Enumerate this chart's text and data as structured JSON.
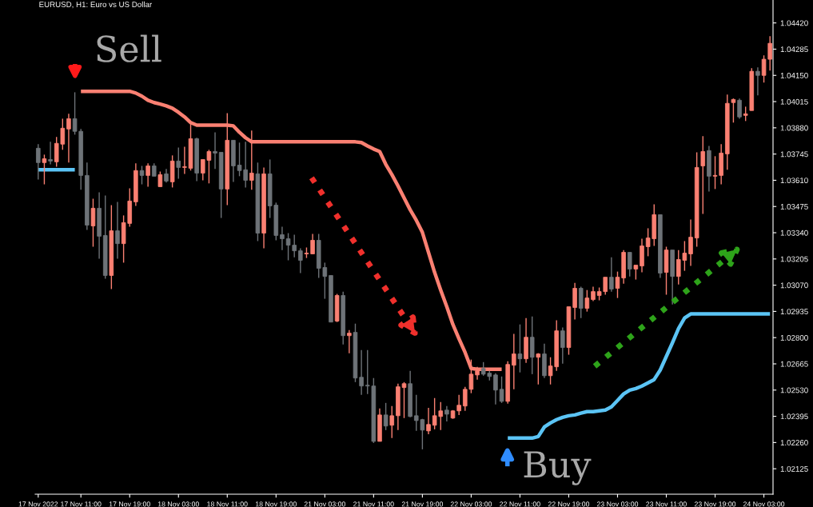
{
  "chart_data": {
    "type": "candlestick",
    "title": "EURUSD, H1: Euro vs US Dollar",
    "categories": [
      "17 Nov 2022",
      null,
      null,
      null,
      null,
      null,
      null,
      "17 Nov 11:00",
      null,
      null,
      null,
      null,
      null,
      null,
      null,
      "17 Nov 19:00",
      null,
      null,
      null,
      null,
      null,
      null,
      null,
      "18 Nov 03:00",
      null,
      null,
      null,
      null,
      null,
      null,
      null,
      "18 Nov 11:00",
      null,
      null,
      null,
      null,
      null,
      null,
      null,
      "18 Nov 19:00",
      null,
      null,
      null,
      null,
      null,
      null,
      null,
      "21 Nov 03:00",
      null,
      null,
      null,
      null,
      null,
      null,
      null,
      "21 Nov 11:00",
      null,
      null,
      null,
      null,
      null,
      null,
      null,
      "21 Nov 19:00",
      null,
      null,
      null,
      null,
      null,
      null,
      null,
      "22 Nov 03:00",
      null,
      null,
      null,
      null,
      null,
      null,
      null,
      "22 Nov 11:00",
      null,
      null,
      null,
      null,
      null,
      null,
      null,
      "22 Nov 19:00",
      null,
      null,
      null,
      null,
      null,
      null,
      null,
      "23 Nov 03:00",
      null,
      null,
      null,
      null,
      null,
      null,
      null,
      "23 Nov 11:00",
      null,
      null,
      null,
      null,
      null,
      null,
      null,
      "23 Nov 19:00",
      null,
      null,
      null,
      null,
      null,
      null,
      null,
      "24 Nov 03:00",
      null
    ],
    "ohlc": [
      [
        1.03775,
        1.03796,
        1.03614,
        1.03701
      ],
      [
        1.03701,
        1.03742,
        1.03589,
        1.03721
      ],
      [
        1.03717,
        1.03808,
        1.03692,
        1.03709
      ],
      [
        1.03705,
        1.03833,
        1.0368,
        1.038
      ],
      [
        1.03796,
        1.03927,
        1.03767,
        1.03878
      ],
      [
        1.03874,
        1.03952,
        1.03701,
        1.03927
      ],
      [
        1.03927,
        1.04063,
        1.03845,
        1.03862
      ],
      [
        1.03862,
        1.03874,
        1.03561,
        1.03635
      ],
      [
        1.03635,
        1.03701,
        1.03355,
        1.03379
      ],
      [
        1.03375,
        1.03515,
        1.03268,
        1.03466
      ],
      [
        1.03466,
        1.03548,
        1.03206,
        1.03322
      ],
      [
        1.03326,
        1.03532,
        1.03103,
        1.0312
      ],
      [
        1.0312,
        1.03482,
        1.0305,
        1.0335
      ],
      [
        1.0335,
        1.03499,
        1.03206,
        1.03284
      ],
      [
        1.03284,
        1.03429,
        1.03186,
        1.03392
      ],
      [
        1.03388,
        1.03569,
        1.03371,
        1.03503
      ],
      [
        1.03499,
        1.03697,
        1.03478,
        1.0366
      ],
      [
        1.0366,
        1.03684,
        1.03589,
        1.03635
      ],
      [
        1.03635,
        1.03697,
        1.03577,
        1.03684
      ],
      [
        1.03684,
        1.03697,
        1.03631,
        1.03631
      ],
      [
        1.03577,
        1.03655,
        1.03577,
        1.03639
      ],
      [
        1.03643,
        1.03668,
        1.03598,
        1.03606
      ],
      [
        1.03602,
        1.03738,
        1.03573,
        1.03709
      ],
      [
        1.03709,
        1.03779,
        1.03618,
        1.03676
      ],
      [
        1.03676,
        1.03783,
        1.03643,
        1.0368
      ],
      [
        1.03672,
        1.03907,
        1.0366,
        1.03824
      ],
      [
        1.03824,
        1.03829,
        1.03606,
        1.03647
      ],
      [
        1.03647,
        1.03717,
        1.0361,
        1.03717
      ],
      [
        1.03713,
        1.03767,
        1.03594,
        1.03758
      ],
      [
        1.03758,
        1.03857,
        1.03668,
        1.0375
      ],
      [
        1.03754,
        1.03754,
        1.03416,
        1.03565
      ],
      [
        1.03565,
        1.03956,
        1.03482,
        1.03816
      ],
      [
        1.03816,
        1.03816,
        1.03602,
        1.03684
      ],
      [
        1.03688,
        1.03804,
        1.03631,
        1.0366
      ],
      [
        1.03664,
        1.03808,
        1.03573,
        1.0361
      ],
      [
        1.0361,
        1.03866,
        1.03561,
        1.03647
      ],
      [
        1.03643,
        1.03701,
        1.03297,
        1.03338
      ],
      [
        1.03338,
        1.03676,
        1.0326,
        1.03643
      ],
      [
        1.03643,
        1.03717,
        1.03416,
        1.03478
      ],
      [
        1.03482,
        1.03495,
        1.03301,
        1.03326
      ],
      [
        1.0333,
        1.03371,
        1.03251,
        1.03309
      ],
      [
        1.03309,
        1.03338,
        1.03198,
        1.03276
      ],
      [
        1.03276,
        1.0333,
        1.03214,
        1.03247
      ],
      [
        1.03247,
        1.0326,
        1.03132,
        1.03198
      ],
      [
        1.03231,
        1.03264,
        1.0321,
        1.03235
      ],
      [
        1.03231,
        1.03334,
        1.03231,
        1.03301
      ],
      [
        1.03301,
        1.03334,
        1.03107,
        1.03157
      ],
      [
        1.03161,
        1.03186,
        1.03,
        1.03115
      ],
      [
        1.0312,
        1.0312,
        1.0288,
        1.0288
      ],
      [
        1.02885,
        1.03025,
        1.0288,
        1.03017
      ],
      [
        1.03017,
        1.03037,
        1.02765,
        1.0281
      ],
      [
        1.0281,
        1.02839,
        1.0272,
        1.02823
      ],
      [
        1.02827,
        1.02872,
        1.02571,
        1.02592
      ],
      [
        1.02596,
        1.02736,
        1.02505,
        1.02551
      ],
      [
        1.02555,
        1.02736,
        1.0251,
        1.02551
      ],
      [
        1.02551,
        1.02592,
        1.02258,
        1.02266
      ],
      [
        1.02266,
        1.02435,
        1.02266,
        1.02402
      ],
      [
        1.02402,
        1.02464,
        1.02324,
        1.02345
      ],
      [
        1.02349,
        1.02448,
        1.02283,
        1.02398
      ],
      [
        1.02398,
        1.02563,
        1.02324,
        1.02547
      ],
      [
        1.02543,
        1.02571,
        1.02386,
        1.02563
      ],
      [
        1.02563,
        1.02629,
        1.0239,
        1.02394
      ],
      [
        1.02398,
        1.02505,
        1.0232,
        1.02373
      ],
      [
        1.02378,
        1.02382,
        1.02225,
        1.02324
      ],
      [
        1.0232,
        1.02439,
        1.02303,
        1.02353
      ],
      [
        1.02349,
        1.02489,
        1.02328,
        1.02398
      ],
      [
        1.02394,
        1.02468,
        1.02324,
        1.02423
      ],
      [
        1.02427,
        1.02448,
        1.02369,
        1.02406
      ],
      [
        1.02386,
        1.02427,
        1.02382,
        1.02423
      ],
      [
        1.02423,
        1.02505,
        1.02402,
        1.02452
      ],
      [
        1.02448,
        1.02547,
        1.02423,
        1.02534
      ],
      [
        1.02534,
        1.02687,
        1.02514,
        1.02612
      ],
      [
        1.02608,
        1.0265,
        1.02584,
        1.02629
      ],
      [
        1.02641,
        1.02674,
        1.02604,
        1.02612
      ],
      [
        1.02617,
        1.02629,
        1.0258,
        1.026
      ],
      [
        1.02608,
        1.02617,
        1.02456,
        1.0253
      ],
      [
        1.02534,
        1.026,
        1.02464,
        1.02472
      ],
      [
        1.02472,
        1.02678,
        1.0246,
        1.02662
      ],
      [
        1.02658,
        1.02819,
        1.02534,
        1.02716
      ],
      [
        1.02716,
        1.02868,
        1.02621,
        1.02691
      ],
      [
        1.02691,
        1.02901,
        1.0267,
        1.02802
      ],
      [
        1.02802,
        1.02909,
        1.02612,
        1.02699
      ],
      [
        1.02699,
        1.0272,
        1.02559,
        1.02716
      ],
      [
        1.02716,
        1.02769,
        1.02592,
        1.02604
      ],
      [
        1.02604,
        1.02699,
        1.02559,
        1.02654
      ],
      [
        1.0265,
        1.02889,
        1.02629,
        1.02835
      ],
      [
        1.02835,
        1.02852,
        1.02666,
        1.02749
      ],
      [
        1.02749,
        1.02959,
        1.02712,
        1.02959
      ],
      [
        1.02955,
        1.03082,
        1.02893,
        1.03054
      ],
      [
        1.03054,
        1.03062,
        1.02901,
        1.02951
      ],
      [
        1.02951,
        1.03045,
        1.02934,
        1.03004
      ],
      [
        1.02996,
        1.03062,
        1.02988,
        1.03037
      ],
      [
        1.03017,
        1.03058,
        1.02992,
        1.03037
      ],
      [
        1.03037,
        1.03111,
        1.03021,
        1.03111
      ],
      [
        1.03111,
        1.03214,
        1.03037,
        1.0305
      ],
      [
        1.03054,
        1.0314,
        1.03004,
        1.03111
      ],
      [
        1.03107,
        1.03251,
        1.03078,
        1.03239
      ],
      [
        1.03239,
        1.03239,
        1.03115,
        1.03153
      ],
      [
        1.03153,
        1.03173,
        1.03099,
        1.03173
      ],
      [
        1.03169,
        1.03309,
        1.03136,
        1.03272
      ],
      [
        1.03268,
        1.03363,
        1.03219,
        1.03313
      ],
      [
        1.03309,
        1.03486,
        1.03272,
        1.03433
      ],
      [
        1.03433,
        1.03433,
        1.03107,
        1.03132
      ],
      [
        1.03136,
        1.03268,
        1.03021,
        1.03251
      ],
      [
        1.03251,
        1.03251,
        1.02971,
        1.03115
      ],
      [
        1.03115,
        1.03251,
        1.03074,
        1.03202
      ],
      [
        1.03198,
        1.03297,
        1.03144,
        1.03235
      ],
      [
        1.03231,
        1.03408,
        1.03169,
        1.03317
      ],
      [
        1.03313,
        1.03754,
        1.03268,
        1.03676
      ],
      [
        1.03684,
        1.03837,
        1.03437,
        1.03758
      ],
      [
        1.03763,
        1.03787,
        1.03552,
        1.03631
      ],
      [
        1.03631,
        1.03734,
        1.03565,
        1.03635
      ],
      [
        1.03635,
        1.03796,
        1.03589,
        1.0375
      ],
      [
        1.03746,
        1.04051,
        1.03664,
        1.04006
      ],
      [
        1.0401,
        1.04031,
        1.03907,
        1.04026
      ],
      [
        1.04022,
        1.04031,
        1.03927,
        1.03936
      ],
      [
        1.03944,
        1.03989,
        1.03915,
        1.03952
      ],
      [
        1.03969,
        1.04187,
        1.03969,
        1.04171
      ],
      [
        1.04171,
        1.04191,
        1.04047,
        1.0415
      ],
      [
        1.0415,
        1.04253,
        1.04113,
        1.04233
      ],
      [
        1.04233,
        1.04352,
        1.04175,
        1.04315
      ]
    ],
    "colors": [
      "#6e7378",
      "#fa8072",
      "#6e7378",
      "#fa8072",
      "#fa8072",
      "#fa8072",
      "#6e7378",
      "#6e7378",
      "#6e7378",
      "#fa8072",
      "#6e7378",
      "#6e7378",
      "#fa8072",
      "#6e7378",
      "#fa8072",
      "#fa8072",
      "#fa8072",
      "#6e7378",
      "#fa8072",
      "#6e7378",
      "#fa8072",
      "#6e7378",
      "#fa8072",
      "#6e7378",
      "#fa8072",
      "#fa8072",
      "#6e7378",
      "#fa8072",
      "#fa8072",
      "#6e7378",
      "#6e7378",
      "#fa8072",
      "#6e7378",
      "#6e7378",
      "#6e7378",
      "#fa8072",
      "#6e7378",
      "#fa8072",
      "#6e7378",
      "#6e7378",
      "#6e7378",
      "#6e7378",
      "#6e7378",
      "#6e7378",
      "#fa8072",
      "#fa8072",
      "#6e7378",
      "#6e7378",
      "#6e7378",
      "#fa8072",
      "#6e7378",
      "#fa8072",
      "#6e7378",
      "#6e7378",
      "#6e7378",
      "#6e7378",
      "#fa8072",
      "#6e7378",
      "#fa8072",
      "#fa8072",
      "#fa8072",
      "#6e7378",
      "#6e7378",
      "#6e7378",
      "#fa8072",
      "#fa8072",
      "#fa8072",
      "#6e7378",
      "#fa8072",
      "#fa8072",
      "#fa8072",
      "#fa8072",
      "#fa8072",
      "#6e7378",
      "#6e7378",
      "#6e7378",
      "#6e7378",
      "#fa8072",
      "#fa8072",
      "#6e7378",
      "#fa8072",
      "#6e7378",
      "#fa8072",
      "#6e7378",
      "#fa8072",
      "#fa8072",
      "#6e7378",
      "#fa8072",
      "#fa8072",
      "#6e7378",
      "#fa8072",
      "#fa8072",
      "#fa8072",
      "#fa8072",
      "#6e7378",
      "#fa8072",
      "#fa8072",
      "#6e7378",
      "#fa8072",
      "#fa8072",
      "#fa8072",
      "#fa8072",
      "#6e7378",
      "#fa8072",
      "#6e7378",
      "#fa8072",
      "#fa8072",
      "#fa8072",
      "#fa8072",
      "#fa8072",
      "#6e7378",
      "#fa8072",
      "#fa8072",
      "#fa8072",
      "#fa8072",
      "#6e7378",
      "#fa8072",
      "#fa8072",
      "#6e7378",
      "#fa8072",
      "#fa8072"
    ],
    "series": [
      {
        "type": "line",
        "color": "#fa8072",
        "values": [
          null,
          null,
          null,
          null,
          null,
          null,
          null,
          1.04068,
          1.04068,
          1.04068,
          1.04068,
          1.04068,
          1.04068,
          1.04068,
          1.04068,
          1.04068,
          1.04059,
          1.04043,
          1.04022,
          1.0401,
          1.04002,
          1.03993,
          1.03981,
          1.0396,
          1.03936,
          1.03907,
          1.03894,
          1.03894,
          1.03894,
          1.03894,
          1.03894,
          1.03894,
          1.0389,
          1.03857,
          1.03829,
          1.03808,
          1.03808,
          1.03808,
          1.03808,
          1.03808,
          1.03808,
          1.03808,
          1.03808,
          1.03808,
          1.03808,
          1.03808,
          1.03808,
          1.03808,
          1.03808,
          1.03808,
          1.03808,
          1.03808,
          1.03808,
          1.03804,
          1.03787,
          1.03771,
          1.03758,
          1.03692,
          1.03639,
          1.03581,
          1.03519,
          1.03458,
          1.03404,
          1.03342,
          1.03239,
          1.03136,
          1.03045,
          1.02959,
          1.02868,
          1.02794,
          1.02724,
          1.02641,
          1.02637,
          1.02637,
          1.02637,
          1.02637,
          1.02637,
          null,
          null,
          null,
          null,
          null,
          null,
          null,
          null,
          null,
          null,
          null,
          null,
          null,
          null,
          null,
          null,
          null,
          null,
          null,
          null,
          null,
          null,
          null,
          null,
          null,
          null,
          null,
          null,
          null,
          null,
          null,
          null,
          null,
          null,
          null,
          null,
          null,
          null,
          null,
          null,
          null,
          null,
          null,
          null
        ]
      },
      {
        "type": "line",
        "color": "#5bc4f5",
        "values": [
          1.03664,
          1.03664,
          1.03664,
          1.03664,
          1.03664,
          1.03664,
          1.03664,
          null,
          null,
          null,
          null,
          null,
          null,
          null,
          null,
          null,
          null,
          null,
          null,
          null,
          null,
          null,
          null,
          null,
          null,
          null,
          null,
          null,
          null,
          null,
          null,
          null,
          null,
          null,
          null,
          null,
          null,
          null,
          null,
          null,
          null,
          null,
          null,
          null,
          null,
          null,
          null,
          null,
          null,
          null,
          null,
          null,
          null,
          null,
          null,
          null,
          null,
          null,
          null,
          null,
          null,
          null,
          null,
          null,
          null,
          null,
          null,
          null,
          null,
          null,
          null,
          null,
          null,
          null,
          null,
          null,
          null,
          1.02283,
          1.02283,
          1.02283,
          1.02283,
          1.02283,
          1.02291,
          1.0234,
          1.02361,
          1.02378,
          1.0239,
          1.02398,
          1.02402,
          1.02411,
          1.02419,
          1.02419,
          1.02423,
          1.02427,
          1.02444,
          1.02477,
          1.0251,
          1.0253,
          1.02538,
          1.02551,
          1.02567,
          1.02584,
          1.02633,
          1.02703,
          1.02773,
          1.02847,
          1.02901,
          1.02922,
          1.02922,
          1.02922,
          1.02922,
          1.02922,
          1.02922,
          1.02922,
          1.02922,
          1.02922,
          1.02922,
          1.02922,
          1.02922,
          1.02922,
          1.02922
        ]
      }
    ],
    "ylim": [
      1.01994,
      1.04538
    ],
    "yticks": [
      {
        "value": 1.0442,
        "label": "1.04420"
      },
      1.04285,
      {
        "value": 1.0415,
        "label": "1.04150"
      },
      1.04015,
      {
        "value": 1.0388,
        "label": "1.03880"
      },
      1.03745,
      {
        "value": 1.0361,
        "label": "1.03610"
      },
      1.03475,
      {
        "value": 1.0334,
        "label": "1.03340"
      },
      1.03205,
      {
        "value": 1.0307,
        "label": "1.03070"
      },
      1.02935,
      {
        "value": 1.028,
        "label": "1.02800"
      },
      1.02665,
      {
        "value": 1.0253,
        "label": "1.02530"
      },
      1.02395,
      {
        "value": 1.0226,
        "label": "1.02260"
      },
      1.02125
    ],
    "annotations": [
      "Sell",
      "Buy"
    ],
    "grid": false,
    "legend": false
  }
}
